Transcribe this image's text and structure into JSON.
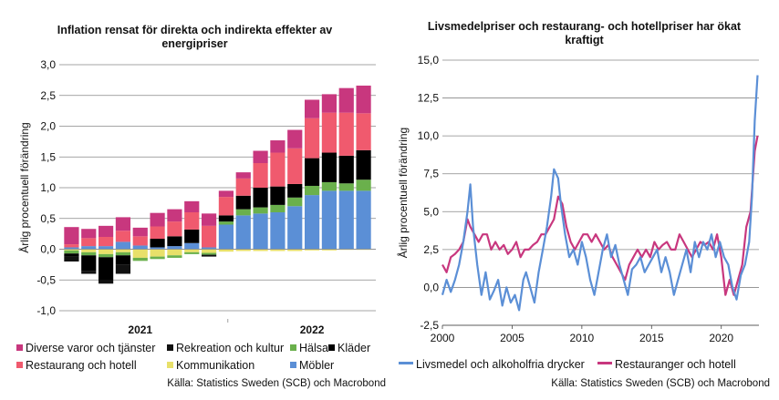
{
  "left": {
    "title_line1": "Inflation rensat för direkta och indirekta effekter av",
    "title_line2": "energipriser",
    "source": "Källa: Statistics Sweden (SCB) och Macrobond",
    "legend": [
      {
        "label": "Diverse varor och tjänster",
        "color": "#c8377e"
      },
      {
        "label": "Rekreation och kultur",
        "color": "#111111"
      },
      {
        "label": "Hälsa",
        "color": "#6ab04c"
      },
      {
        "label": "Kläder",
        "color": "#000000"
      },
      {
        "label": "Restaurang och hotell",
        "color": "#f05a6e"
      },
      {
        "label": "Kommunikation",
        "color": "#e8e06a"
      },
      {
        "label": "Möbler",
        "color": "#5b8fd6"
      }
    ]
  },
  "right": {
    "title_line1": "Livsmedelpriser och restaurang- och hotellpriser har ökat",
    "title_line2": "kraftigt",
    "source": "Källa: Statistics Sweden (SCB) och Macrobond",
    "legend": [
      {
        "label": "Livsmedel och alkoholfria drycker",
        "color": "#5b8fd6"
      },
      {
        "label": "Restauranger och hotell",
        "color": "#c8377e"
      }
    ]
  },
  "chart_data": [
    {
      "type": "bar",
      "stacked": true,
      "title": "Inflation rensat för direkta och indirekta effekter av energipriser",
      "ylabel": "Årlig procentuell förändring",
      "ylim": [
        -1.0,
        3.0
      ],
      "yticks": [
        "-1,0",
        "-0,5",
        "0,0",
        "0,5",
        "1,0",
        "1,5",
        "2,0",
        "2,5",
        "3,0"
      ],
      "xtick_labels": [
        "2021",
        "2022"
      ],
      "categories": [
        "2021-01",
        "2021-02",
        "2021-03",
        "2021-04",
        "2021-05",
        "2021-06",
        "2021-07",
        "2021-08",
        "2021-09",
        "2021-10",
        "2021-11",
        "2021-12",
        "2022-01",
        "2022-02",
        "2022-03",
        "2022-04",
        "2022-05",
        "2022-06"
      ],
      "series": [
        {
          "name": "Möbler",
          "color": "#5b8fd6",
          "values": [
            0.03,
            0.05,
            0.05,
            0.12,
            0.06,
            0.03,
            0.05,
            0.1,
            0.03,
            0.4,
            0.55,
            0.58,
            0.6,
            0.7,
            0.88,
            0.95,
            0.95,
            0.95
          ]
        },
        {
          "name": "Kommunikation",
          "color": "#e8e06a",
          "values": [
            -0.02,
            -0.05,
            -0.08,
            -0.05,
            -0.14,
            -0.12,
            -0.1,
            -0.05,
            -0.06,
            -0.04,
            -0.03,
            -0.03,
            -0.03,
            -0.03,
            -0.02,
            -0.02,
            -0.01,
            -0.01
          ]
        },
        {
          "name": "Hälsa",
          "color": "#6ab04c",
          "values": [
            -0.05,
            -0.05,
            -0.05,
            -0.05,
            -0.05,
            -0.04,
            -0.04,
            -0.03,
            -0.03,
            0.05,
            0.1,
            0.1,
            0.12,
            0.14,
            0.15,
            0.14,
            0.12,
            0.18
          ]
        },
        {
          "name": "Kläder",
          "color": "#000000",
          "values": [
            -0.05,
            -0.25,
            -0.38,
            -0.15,
            0.0,
            0.14,
            0.16,
            0.22,
            0.0,
            0.1,
            0.22,
            0.32,
            0.3,
            0.22,
            0.45,
            0.48,
            0.45,
            0.48
          ]
        },
        {
          "name": "Rekreation och kultur",
          "color": "#111111",
          "values": [
            -0.08,
            -0.05,
            -0.05,
            -0.15,
            0.0,
            0.0,
            0.0,
            0.0,
            -0.03,
            0.0,
            0.0,
            0.0,
            0.0,
            0.0,
            0.0,
            0.0,
            0.0,
            0.0
          ]
        },
        {
          "name": "Restaurang och hotell",
          "color": "#f05a6e",
          "values": [
            0.05,
            0.13,
            0.15,
            0.18,
            0.15,
            0.2,
            0.24,
            0.28,
            0.35,
            0.3,
            0.28,
            0.4,
            0.55,
            0.58,
            0.65,
            0.65,
            0.7,
            0.6
          ]
        },
        {
          "name": "Diverse varor och tjänster",
          "color": "#c8377e",
          "values": [
            0.28,
            0.15,
            0.18,
            0.22,
            0.14,
            0.22,
            0.2,
            0.18,
            0.2,
            0.1,
            0.1,
            0.2,
            0.2,
            0.3,
            0.3,
            0.3,
            0.4,
            0.45
          ]
        }
      ]
    },
    {
      "type": "line",
      "title": "Livsmedelpriser och restaurang- och hotellpriser har ökat kraftigt",
      "ylabel": "Årlig procentuell förändring",
      "xlim": [
        2000,
        2022.7
      ],
      "ylim": [
        -2.5,
        15.0
      ],
      "yticks": [
        "-2,5",
        "0,0",
        "2,5",
        "5,0",
        "7,5",
        "10,0",
        "12,5",
        "15,0"
      ],
      "xticks": [
        "2000",
        "2005",
        "2010",
        "2015",
        "2020"
      ],
      "series": [
        {
          "name": "Livsmedel och alkoholfria drycker",
          "color": "#5b8fd6",
          "x": [
            2000.0,
            2000.3,
            2000.6,
            2000.9,
            2001.2,
            2001.5,
            2001.8,
            2002.0,
            2002.2,
            2002.5,
            2002.8,
            2003.1,
            2003.4,
            2003.7,
            2004.0,
            2004.3,
            2004.6,
            2004.9,
            2005.2,
            2005.5,
            2005.8,
            2006.0,
            2006.3,
            2006.6,
            2006.9,
            2007.2,
            2007.5,
            2007.8,
            2008.0,
            2008.3,
            2008.5,
            2008.8,
            2009.1,
            2009.4,
            2009.7,
            2010.0,
            2010.3,
            2010.6,
            2010.9,
            2011.2,
            2011.5,
            2011.8,
            2012.1,
            2012.4,
            2012.7,
            2013.0,
            2013.3,
            2013.6,
            2013.9,
            2014.2,
            2014.5,
            2014.8,
            2015.1,
            2015.4,
            2015.7,
            2016.0,
            2016.3,
            2016.6,
            2016.9,
            2017.2,
            2017.5,
            2017.8,
            2018.1,
            2018.4,
            2018.7,
            2019.0,
            2019.3,
            2019.6,
            2019.9,
            2020.2,
            2020.5,
            2020.8,
            2021.1,
            2021.4,
            2021.7,
            2022.0,
            2022.2,
            2022.4,
            2022.6
          ],
          "y": [
            -0.5,
            0.5,
            -0.3,
            0.5,
            1.5,
            3.0,
            5.0,
            6.8,
            4.0,
            1.5,
            -0.5,
            1.0,
            -0.8,
            -0.2,
            0.5,
            -1.2,
            0.0,
            -1.0,
            -0.5,
            -1.5,
            0.5,
            1.0,
            0.0,
            -1.0,
            1.0,
            2.5,
            4.0,
            6.0,
            7.8,
            7.2,
            5.5,
            3.5,
            2.0,
            2.5,
            1.5,
            3.0,
            2.0,
            0.5,
            -0.5,
            1.0,
            2.5,
            3.5,
            2.0,
            2.8,
            1.5,
            0.5,
            -0.5,
            1.2,
            1.5,
            2.0,
            1.0,
            1.5,
            2.0,
            2.5,
            1.0,
            2.0,
            1.0,
            -0.5,
            0.5,
            1.5,
            2.5,
            1.0,
            3.0,
            2.0,
            3.0,
            2.5,
            3.5,
            2.0,
            3.0,
            2.0,
            1.5,
            0.0,
            -0.8,
            0.8,
            1.5,
            3.0,
            6.0,
            11.0,
            14.0
          ]
        },
        {
          "name": "Restauranger och hotell",
          "color": "#c8377e",
          "x": [
            2000.0,
            2000.3,
            2000.6,
            2000.9,
            2001.2,
            2001.5,
            2001.8,
            2002.0,
            2002.3,
            2002.6,
            2002.9,
            2003.2,
            2003.5,
            2003.8,
            2004.1,
            2004.4,
            2004.7,
            2005.0,
            2005.3,
            2005.6,
            2005.9,
            2006.2,
            2006.5,
            2006.8,
            2007.1,
            2007.4,
            2007.7,
            2008.0,
            2008.3,
            2008.6,
            2008.9,
            2009.2,
            2009.5,
            2009.8,
            2010.1,
            2010.4,
            2010.7,
            2011.0,
            2011.3,
            2011.6,
            2011.9,
            2012.2,
            2012.5,
            2012.8,
            2013.1,
            2013.4,
            2013.7,
            2014.0,
            2014.3,
            2014.6,
            2014.9,
            2015.2,
            2015.5,
            2015.8,
            2016.1,
            2016.4,
            2016.7,
            2017.0,
            2017.3,
            2017.6,
            2017.9,
            2018.2,
            2018.5,
            2018.8,
            2019.1,
            2019.4,
            2019.7,
            2020.0,
            2020.3,
            2020.6,
            2020.9,
            2021.2,
            2021.5,
            2021.8,
            2022.1,
            2022.4,
            2022.6
          ],
          "y": [
            1.5,
            1.0,
            2.0,
            2.2,
            2.5,
            3.0,
            4.5,
            4.0,
            3.5,
            3.0,
            3.5,
            3.5,
            2.5,
            3.0,
            2.5,
            2.8,
            2.2,
            2.5,
            3.0,
            2.0,
            2.5,
            2.5,
            2.8,
            3.0,
            3.5,
            3.5,
            4.0,
            4.5,
            6.0,
            5.5,
            4.0,
            3.0,
            2.5,
            3.0,
            3.5,
            3.5,
            3.0,
            3.5,
            3.0,
            2.5,
            2.8,
            2.0,
            1.5,
            1.0,
            0.5,
            1.5,
            2.0,
            2.5,
            2.0,
            2.5,
            2.0,
            3.0,
            2.5,
            2.8,
            3.0,
            2.5,
            2.5,
            3.5,
            3.0,
            2.5,
            2.0,
            2.5,
            3.0,
            2.8,
            3.0,
            2.5,
            3.5,
            2.0,
            -0.5,
            0.5,
            -0.5,
            0.5,
            1.5,
            4.0,
            5.0,
            9.0,
            10.0
          ]
        }
      ]
    }
  ]
}
